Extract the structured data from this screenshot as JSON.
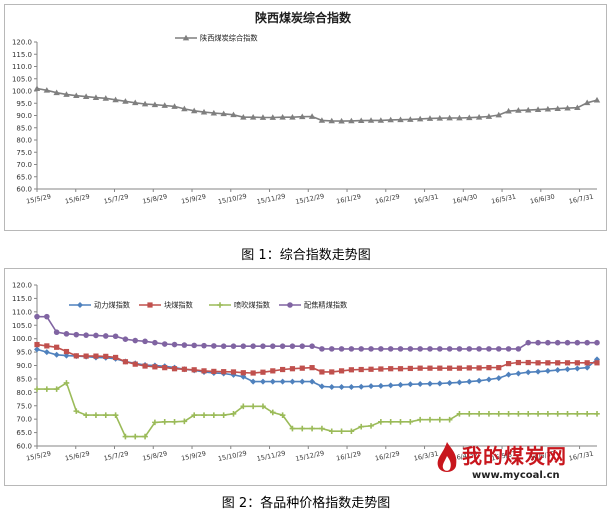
{
  "captions": {
    "figure1": "图 1：综合指数走势图",
    "figure2": "图 2：各品种价格指数走势图"
  },
  "watermark": {
    "brand": "我的煤炭网",
    "url": "www.mycoal.cn"
  },
  "chart_data": [
    {
      "type": "line",
      "title": "陕西煤炭综合指数",
      "xlabel": "",
      "ylabel": "",
      "ylim": [
        60,
        120
      ],
      "yticks": [
        "60.0",
        "65.0",
        "70.0",
        "75.0",
        "80.0",
        "85.0",
        "90.0",
        "95.0",
        "100.0",
        "105.0",
        "110.0",
        "115.0",
        "120.0"
      ],
      "x_tick_labels": [
        "15/5/29",
        "15/6/29",
        "15/7/29",
        "15/8/29",
        "15/9/29",
        "15/10/29",
        "15/11/29",
        "15/12/29",
        "16/1/29",
        "16/2/29",
        "16/3/31",
        "16/4/30",
        "16/5/31",
        "16/6/30",
        "16/7/31"
      ],
      "legend_position": "top-left",
      "grid": false,
      "series": [
        {
          "name": "陕西煤炭综合指数",
          "color": "#7f7f7f",
          "marker": "triangle",
          "values": [
            101.0,
            100.3,
            99.3,
            98.6,
            98.1,
            97.7,
            97.3,
            97.0,
            96.4,
            95.8,
            95.2,
            94.7,
            94.4,
            94.1,
            93.7,
            92.7,
            91.9,
            91.4,
            91.0,
            90.7,
            90.3,
            89.3,
            89.3,
            89.2,
            89.2,
            89.3,
            89.3,
            89.5,
            89.6,
            88.0,
            87.8,
            87.7,
            87.8,
            87.9,
            88.0,
            88.0,
            88.2,
            88.3,
            88.4,
            88.6,
            88.8,
            88.9,
            89.0,
            89.0,
            89.1,
            89.3,
            89.6,
            90.2,
            91.8,
            92.1,
            92.2,
            92.4,
            92.6,
            92.8,
            93.0,
            93.2,
            95.2,
            96.3
          ]
        }
      ]
    },
    {
      "type": "line",
      "title": "",
      "xlabel": "",
      "ylabel": "",
      "ylim": [
        60,
        120
      ],
      "yticks": [
        "60.0",
        "65.0",
        "70.0",
        "75.0",
        "80.0",
        "85.0",
        "90.0",
        "95.0",
        "100.0",
        "105.0",
        "110.0",
        "115.0",
        "120.0"
      ],
      "x_tick_labels": [
        "15/5/29",
        "15/6/29",
        "15/7/29",
        "15/8/29",
        "15/9/29",
        "15/10/29",
        "15/11/29",
        "15/12/29",
        "16/1/29",
        "16/2/29",
        "16/3/31",
        "16/4/30",
        "16/5/31",
        "16/6/30",
        "16/7/31"
      ],
      "legend_position": "top-left",
      "grid": false,
      "series": [
        {
          "name": "动力煤指数",
          "color": "#4f81bd",
          "marker": "diamond",
          "values": [
            96.0,
            95.0,
            94.0,
            93.7,
            93.5,
            93.3,
            93.0,
            92.9,
            92.5,
            91.5,
            90.8,
            90.2,
            90.0,
            89.7,
            89.2,
            88.6,
            88.2,
            87.6,
            87.2,
            87.0,
            86.5,
            85.8,
            84.0,
            84.0,
            84.0,
            84.0,
            84.0,
            84.0,
            84.0,
            82.2,
            82.0,
            82.0,
            82.0,
            82.1,
            82.3,
            82.4,
            82.6,
            82.8,
            83.0,
            83.1,
            83.2,
            83.3,
            83.5,
            83.7,
            84.0,
            84.3,
            84.8,
            85.3,
            86.6,
            87.0,
            87.5,
            87.7,
            88.0,
            88.3,
            88.6,
            88.9,
            89.2,
            92.3
          ]
        },
        {
          "name": "块煤指数",
          "color": "#c0504d",
          "marker": "square",
          "values": [
            97.8,
            97.3,
            96.8,
            95.2,
            93.6,
            93.5,
            93.5,
            93.4,
            93.0,
            91.4,
            90.5,
            89.8,
            89.5,
            89.2,
            88.8,
            88.6,
            88.4,
            88.0,
            87.8,
            87.7,
            87.6,
            87.3,
            87.2,
            87.5,
            88.0,
            88.5,
            88.8,
            89.0,
            89.2,
            87.6,
            87.6,
            88.0,
            88.4,
            88.5,
            88.6,
            88.7,
            88.8,
            88.8,
            88.9,
            89.0,
            89.0,
            89.0,
            89.0,
            89.0,
            89.1,
            89.1,
            89.2,
            89.2,
            90.7,
            91.1,
            91.1,
            91.0,
            91.0,
            91.0,
            91.0,
            91.0,
            91.0,
            91.0
          ]
        },
        {
          "name": "喷吹煤指数",
          "color": "#9bbb59",
          "marker": "cross",
          "values": [
            81.2,
            81.2,
            81.2,
            83.5,
            73.0,
            71.5,
            71.5,
            71.5,
            71.5,
            63.5,
            63.5,
            63.5,
            68.8,
            69.0,
            69.0,
            69.2,
            71.5,
            71.5,
            71.5,
            71.5,
            72.0,
            74.8,
            74.8,
            74.8,
            72.5,
            71.5,
            66.5,
            66.5,
            66.5,
            66.5,
            65.5,
            65.5,
            65.5,
            67.2,
            67.5,
            69.0,
            69.0,
            69.0,
            69.0,
            69.8,
            69.8,
            69.8,
            69.8,
            72.0,
            72.0,
            72.0,
            72.0,
            72.0,
            72.0,
            72.0,
            72.0,
            72.0,
            72.0,
            72.0,
            72.0,
            72.0,
            72.0,
            72.0
          ]
        },
        {
          "name": "配焦精煤指数",
          "color": "#8064a2",
          "marker": "circle",
          "values": [
            108.2,
            108.2,
            102.4,
            101.8,
            101.5,
            101.3,
            101.2,
            101.0,
            100.9,
            99.8,
            99.3,
            99.0,
            98.5,
            98.0,
            97.8,
            97.6,
            97.5,
            97.4,
            97.3,
            97.2,
            97.2,
            97.2,
            97.2,
            97.2,
            97.2,
            97.2,
            97.2,
            97.2,
            97.2,
            96.2,
            96.2,
            96.2,
            96.2,
            96.2,
            96.2,
            96.2,
            96.2,
            96.2,
            96.2,
            96.2,
            96.2,
            96.2,
            96.2,
            96.2,
            96.2,
            96.2,
            96.2,
            96.2,
            96.2,
            96.2,
            98.5,
            98.5,
            98.5,
            98.5,
            98.5,
            98.5,
            98.5,
            98.5
          ]
        }
      ]
    }
  ]
}
